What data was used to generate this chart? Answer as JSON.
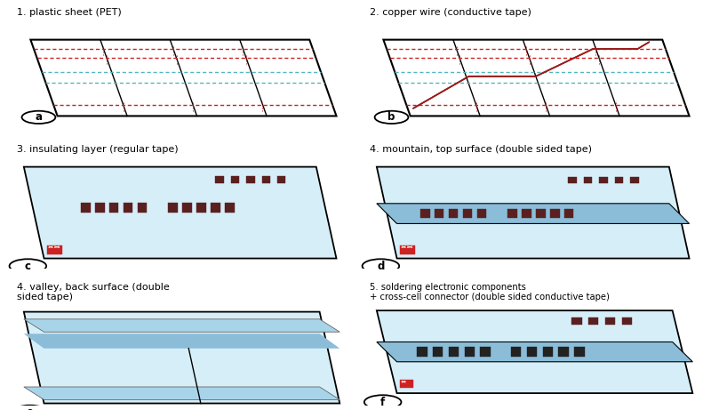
{
  "light_blue": "#d6eef8",
  "medium_blue": "#a8d4ea",
  "strip_blue": "#8bbdd9",
  "red_dashed": "#cc2222",
  "teal_dashed": "#55b5c0",
  "dark_red": "#8b1010",
  "component_dark": "#5a2020",
  "background": "#ffffff",
  "panel_titles": [
    "1. plastic sheet (PET)",
    "2. copper wire (conductive tape)",
    "3. insulating layer (regular tape)",
    "4. mountain, top surface (double sided tape)",
    "4. valley, back surface (double\nsided tape)",
    "5. soldering electronic components\n+ cross-cell connector (double sided conductive tape)"
  ],
  "panel_labels": [
    "a",
    "b",
    "c",
    "d",
    "e",
    "f"
  ]
}
